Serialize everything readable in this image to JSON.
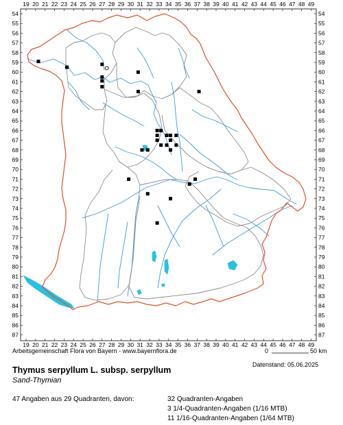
{
  "map": {
    "x_axis_labels": [
      "19",
      "20",
      "21",
      "22",
      "23",
      "24",
      "25",
      "26",
      "27",
      "28",
      "29",
      "30",
      "31",
      "32",
      "33",
      "34",
      "35",
      "36",
      "37",
      "38",
      "39",
      "40",
      "41",
      "42",
      "43",
      "44",
      "45",
      "46",
      "47",
      "48",
      "49"
    ],
    "y_axis_labels": [
      "54",
      "55",
      "56",
      "57",
      "58",
      "59",
      "60",
      "61",
      "62",
      "63",
      "64",
      "65",
      "66",
      "67",
      "68",
      "69",
      "70",
      "71",
      "72",
      "73",
      "74",
      "75",
      "76",
      "77",
      "78",
      "79",
      "80",
      "81",
      "82",
      "83",
      "84",
      "85",
      "86",
      "87"
    ],
    "occurrences_quadrant": [
      {
        "x": 20.3,
        "y": 58.9
      },
      {
        "x": 23.3,
        "y": 59.5
      },
      {
        "x": 27.0,
        "y": 59.2
      },
      {
        "x": 27.0,
        "y": 60.5
      },
      {
        "x": 27.0,
        "y": 60.9
      },
      {
        "x": 27.0,
        "y": 61.5
      },
      {
        "x": 30.8,
        "y": 60.0
      },
      {
        "x": 30.8,
        "y": 62.0
      },
      {
        "x": 37.2,
        "y": 62.0
      },
      {
        "x": 32.8,
        "y": 66.0
      },
      {
        "x": 33.2,
        "y": 66.0
      },
      {
        "x": 32.8,
        "y": 66.5
      },
      {
        "x": 32.8,
        "y": 67.0
      },
      {
        "x": 33.8,
        "y": 66.5
      },
      {
        "x": 34.2,
        "y": 66.5
      },
      {
        "x": 34.8,
        "y": 66.5
      },
      {
        "x": 34.2,
        "y": 67.0
      },
      {
        "x": 33.2,
        "y": 67.5
      },
      {
        "x": 33.8,
        "y": 67.5
      },
      {
        "x": 34.8,
        "y": 67.5
      },
      {
        "x": 34.2,
        "y": 68.0
      },
      {
        "x": 31.2,
        "y": 68.0
      },
      {
        "x": 31.8,
        "y": 68.0
      },
      {
        "x": 29.8,
        "y": 71.0
      },
      {
        "x": 36.8,
        "y": 71.0
      },
      {
        "x": 36.2,
        "y": 71.5
      },
      {
        "x": 31.8,
        "y": 72.5
      },
      {
        "x": 34.2,
        "y": 73.0
      },
      {
        "x": 32.8,
        "y": 75.5
      }
    ],
    "occurrences_open": [
      {
        "x": 27.5,
        "y": 59.6
      }
    ],
    "colors": {
      "state_border": "#e0502b",
      "district_border": "#8c8c8c",
      "river": "#3d9ad6",
      "lake": "#29c1de",
      "marker": "#000000"
    }
  },
  "footer": {
    "credit": "Arbeitsgemeinschaft Flora von Bayern - www.bayernflora.de",
    "scale_start": "0",
    "scale_end": "50 km",
    "date_stamp": "Datenstand: 05.06.2025"
  },
  "species": {
    "scientific_name": "Thymus serpyllum L. subsp. serpyllum",
    "common_name": "Sand-Thymian"
  },
  "stats": {
    "summary": "47 Angaben aus 29 Quadranten, davon:",
    "line1": "32 Quadranten-Angaben",
    "line2": "3 1/4-Quadranten-Angaben (1/16 MTB)",
    "line3": "11 1/16-Quadranten-Angaben (1/64 MTB)"
  }
}
